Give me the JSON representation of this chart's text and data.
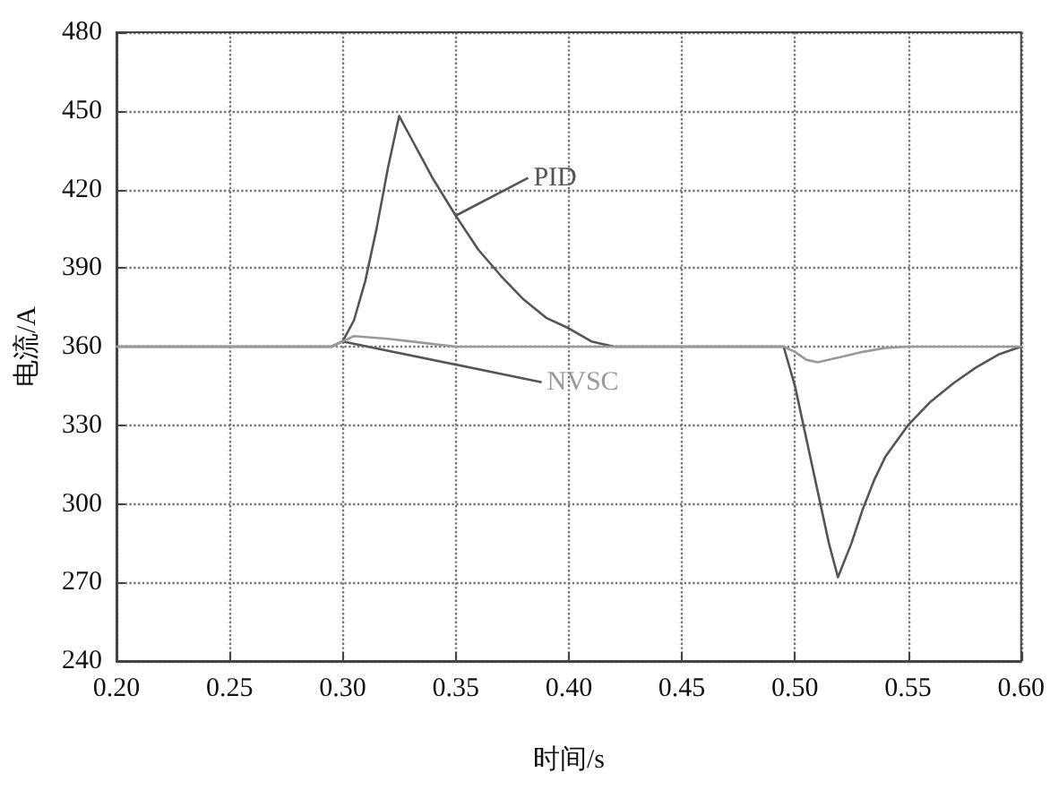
{
  "chart_data": {
    "type": "line",
    "xlabel": "时间/s",
    "ylabel": "电流/A",
    "xlim": [
      0.2,
      0.6
    ],
    "xticks": [
      {
        "value": 0.2,
        "label": "0.20"
      },
      {
        "value": 0.25,
        "label": "0.25"
      },
      {
        "value": 0.3,
        "label": "0.30"
      },
      {
        "value": 0.35,
        "label": "0.35"
      },
      {
        "value": 0.4,
        "label": "0.40"
      },
      {
        "value": 0.45,
        "label": "0.45"
      },
      {
        "value": 0.5,
        "label": "0.50"
      },
      {
        "value": 0.55,
        "label": "0.55"
      },
      {
        "value": 0.6,
        "label": "0.60"
      }
    ],
    "ylim": [
      240,
      480
    ],
    "yticks": [
      240,
      270,
      300,
      330,
      360,
      390,
      420,
      450,
      480
    ],
    "grid": true,
    "legend": false,
    "marker": "none",
    "line_style": "solid",
    "series": [
      {
        "name": "PID",
        "color": "#555555",
        "x": [
          0.2,
          0.295,
          0.3,
          0.305,
          0.31,
          0.315,
          0.32,
          0.325,
          0.33,
          0.335,
          0.34,
          0.345,
          0.35,
          0.36,
          0.37,
          0.38,
          0.39,
          0.4,
          0.41,
          0.42,
          0.495,
          0.5,
          0.505,
          0.51,
          0.515,
          0.519,
          0.525,
          0.53,
          0.535,
          0.54,
          0.55,
          0.56,
          0.57,
          0.58,
          0.59,
          0.6
        ],
        "values": [
          360,
          360,
          362,
          370,
          385,
          405,
          428,
          448,
          440,
          432,
          424,
          417,
          410,
          397,
          387,
          378,
          371,
          367,
          362,
          360,
          360,
          345,
          325,
          305,
          285,
          272,
          285,
          298,
          309,
          318,
          330,
          339,
          346,
          352,
          357,
          360
        ]
      },
      {
        "name": "NVSC",
        "color": "#999999",
        "x": [
          0.2,
          0.295,
          0.3,
          0.305,
          0.32,
          0.33,
          0.35,
          0.495,
          0.5,
          0.505,
          0.51,
          0.52,
          0.53,
          0.54,
          0.55,
          0.6
        ],
        "values": [
          360,
          360,
          362,
          364,
          363,
          362,
          360,
          360,
          358,
          355,
          354,
          356,
          358,
          359.5,
          360,
          360
        ]
      }
    ]
  }
}
